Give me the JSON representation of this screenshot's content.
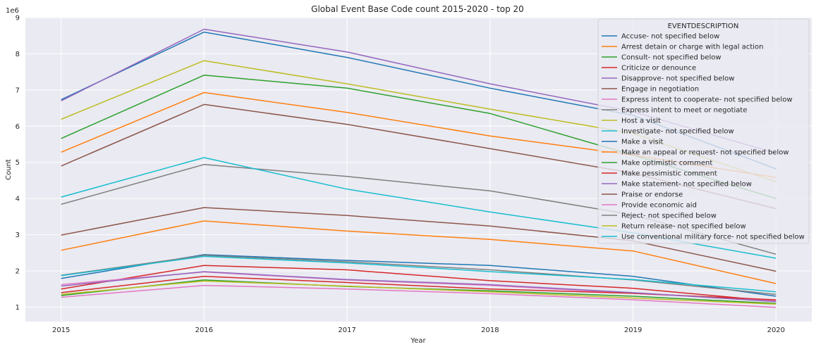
{
  "chart_data": {
    "type": "line",
    "title": "Global Event Base Code count 2015-2020 - top 20",
    "xlabel": "Year",
    "ylabel": "Count",
    "y_offset_label": "1e6",
    "x": [
      2015,
      2016,
      2017,
      2018,
      2019,
      2020
    ],
    "xticks": [
      "2015",
      "2016",
      "2017",
      "2018",
      "2019",
      "2020"
    ],
    "xlim": [
      2014.75,
      2020.25
    ],
    "yticks": [
      "1",
      "2",
      "3",
      "4",
      "5",
      "6",
      "7",
      "8",
      "9"
    ],
    "ylim": [
      0.6,
      9.0
    ],
    "units": 1000000,
    "grid": true,
    "legend_title": "EVENTDESCRIPTION",
    "legend_position": "top-right",
    "series": [
      {
        "name": "Accuse- not specified below",
        "color": "#1f77b4",
        "values": [
          6.73,
          8.6,
          7.9,
          7.05,
          6.3,
          4.82
        ]
      },
      {
        "name": "Arrest detain or charge with legal action",
        "color": "#ff7f0e",
        "values": [
          2.57,
          3.38,
          3.1,
          2.87,
          2.55,
          1.65
        ]
      },
      {
        "name": "Consult- not specified below",
        "color": "#2ca02c",
        "values": [
          5.66,
          7.41,
          7.05,
          6.35,
          5.2,
          4.0
        ]
      },
      {
        "name": "Criticize or denounce",
        "color": "#d62728",
        "values": [
          1.5,
          2.15,
          2.03,
          1.73,
          1.52,
          1.16
        ]
      },
      {
        "name": "Disapprove- not specified below",
        "color": "#9467bd",
        "values": [
          6.7,
          8.68,
          8.05,
          7.17,
          6.4,
          5.25
        ]
      },
      {
        "name": "Engage in negotiation",
        "color": "#8c564b",
        "values": [
          4.9,
          6.6,
          6.05,
          5.38,
          4.7,
          3.72
        ]
      },
      {
        "name": "Express intent to cooperate- not specified below",
        "color": "#e377c2",
        "values": [
          1.62,
          1.97,
          1.75,
          1.6,
          1.38,
          1.18
        ]
      },
      {
        "name": "Express intent to meet or negotiate",
        "color": "#7f7f7f",
        "values": [
          3.84,
          4.94,
          4.61,
          4.21,
          3.55,
          2.46
        ]
      },
      {
        "name": "Host a visit",
        "color": "#bcbd22",
        "values": [
          6.19,
          7.81,
          7.17,
          6.47,
          5.8,
          4.46
        ]
      },
      {
        "name": "Investigate- not specified below",
        "color": "#17becf",
        "values": [
          4.04,
          5.13,
          4.26,
          3.63,
          3.05,
          2.35
        ]
      },
      {
        "name": "Make a visit",
        "color": "#1f77b4",
        "values": [
          1.79,
          2.45,
          2.29,
          2.15,
          1.85,
          1.3
        ]
      },
      {
        "name": "Make an appeal or request- not specified below",
        "color": "#ff7f0e",
        "values": [
          5.28,
          6.93,
          6.38,
          5.73,
          5.2,
          4.58
        ]
      },
      {
        "name": "Make optimistic comment",
        "color": "#2ca02c",
        "values": [
          1.32,
          1.75,
          1.57,
          1.45,
          1.3,
          1.1
        ]
      },
      {
        "name": "Make pessimistic comment",
        "color": "#d62728",
        "values": [
          1.4,
          1.85,
          1.68,
          1.5,
          1.38,
          1.2
        ]
      },
      {
        "name": "Make statement- not specified below",
        "color": "#9467bd",
        "values": [
          1.58,
          1.98,
          1.76,
          1.62,
          1.4,
          1.15
        ]
      },
      {
        "name": "Praise or endorse",
        "color": "#8c564b",
        "values": [
          2.99,
          3.75,
          3.53,
          3.24,
          2.83,
          1.99
        ]
      },
      {
        "name": "Provide economic aid",
        "color": "#e377c2",
        "values": [
          1.27,
          1.6,
          1.5,
          1.37,
          1.2,
          0.99
        ]
      },
      {
        "name": "Reject- not specified below",
        "color": "#7f7f7f",
        "values": [
          1.88,
          2.43,
          2.25,
          2.03,
          1.75,
          1.35
        ]
      },
      {
        "name": "Return release- not specified below",
        "color": "#bcbd22",
        "values": [
          1.35,
          1.72,
          1.58,
          1.42,
          1.25,
          1.08
        ]
      },
      {
        "name": "Use conventional military force- not specified below",
        "color": "#17becf",
        "values": [
          1.87,
          2.4,
          2.22,
          1.98,
          1.76,
          1.42
        ]
      }
    ]
  }
}
